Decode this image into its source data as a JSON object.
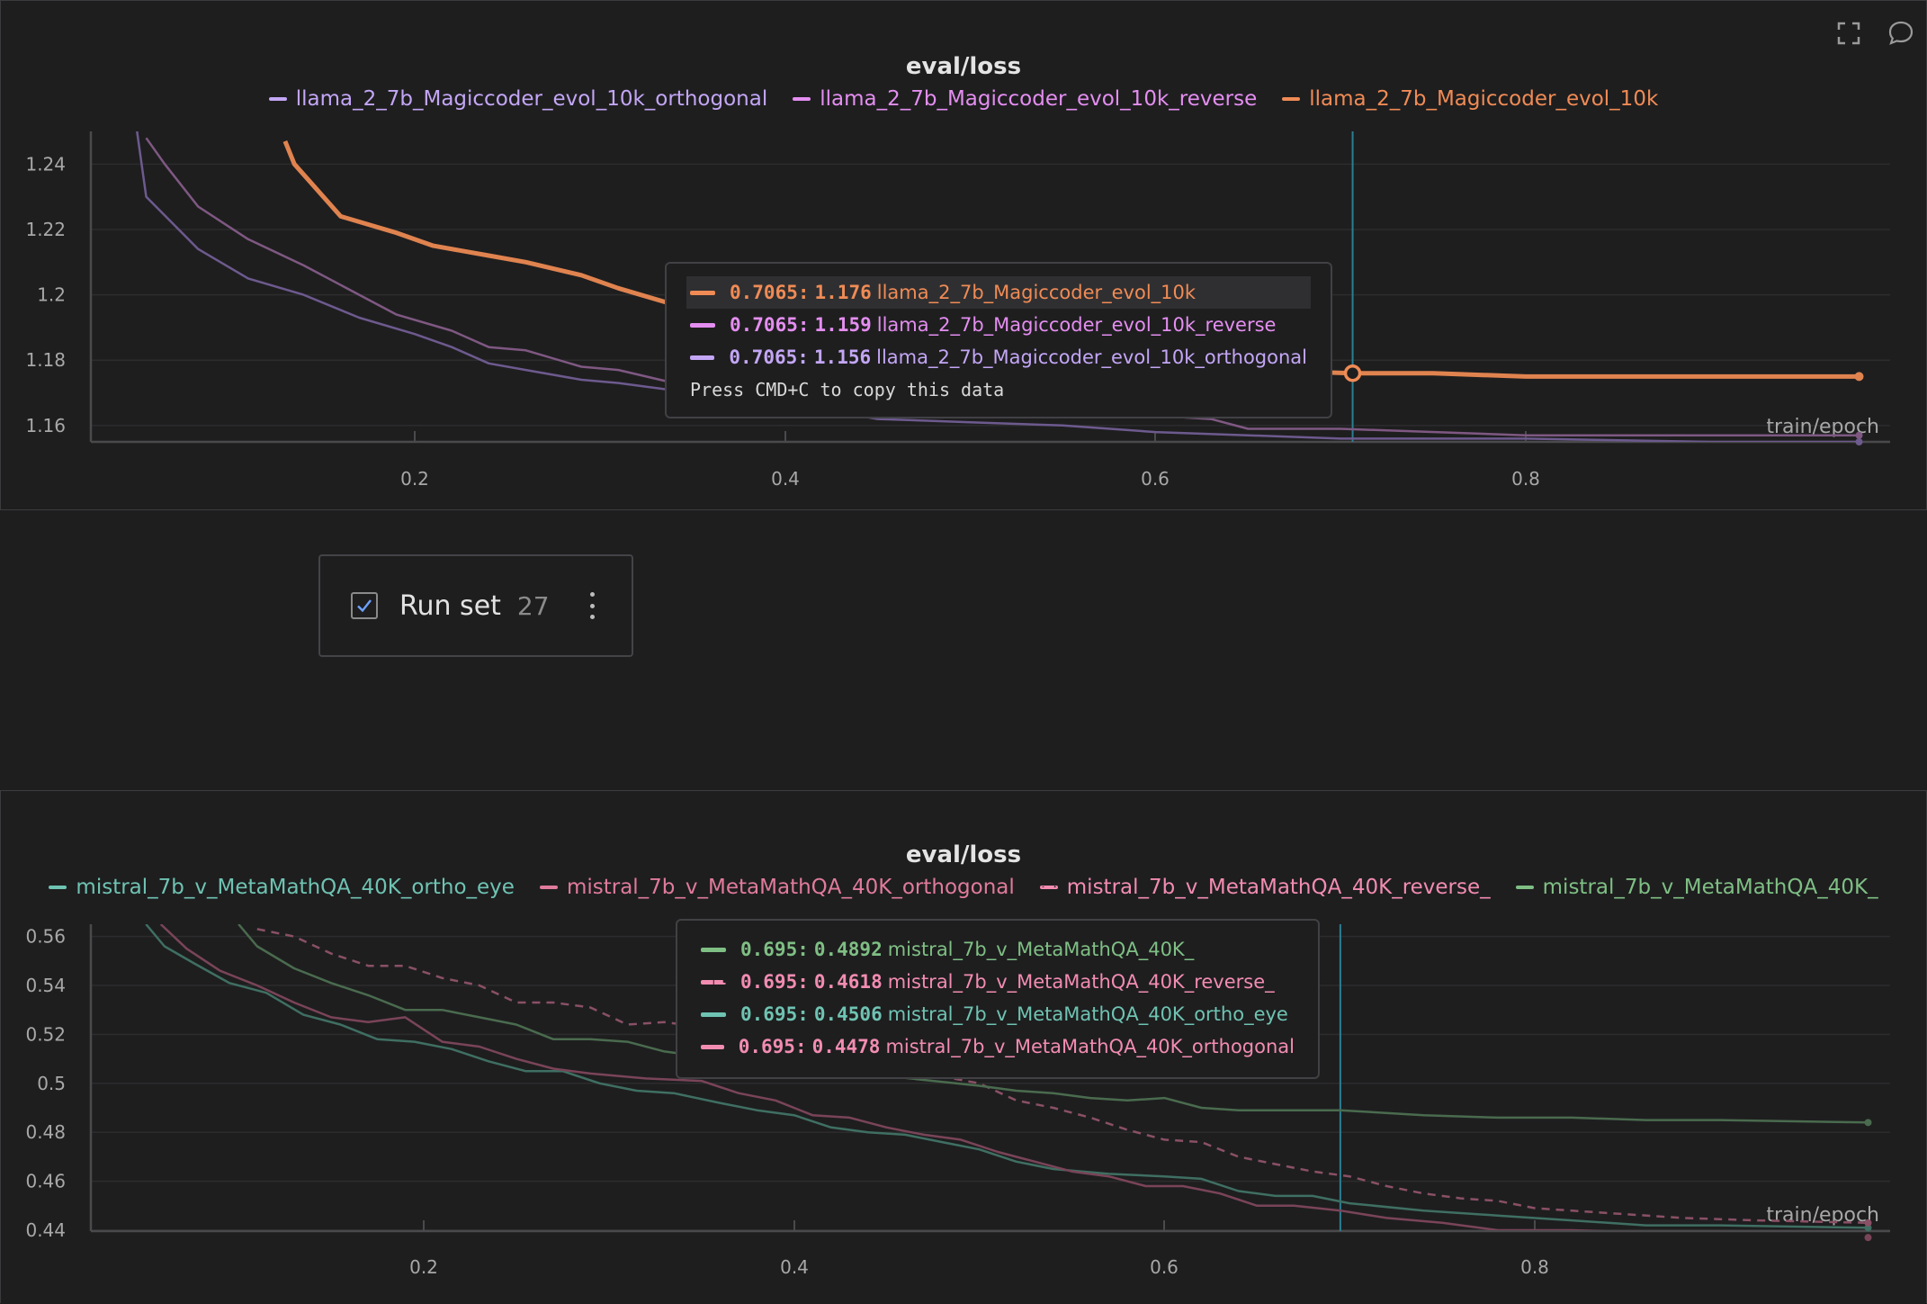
{
  "icons": {
    "fullscreen": "fullscreen-icon",
    "comment": "comment-icon",
    "checkbox": "checkbox-checked-icon",
    "menu": "kebab-menu-icon"
  },
  "run_set": {
    "label": "Run set",
    "count": "27"
  },
  "tooltip_hint": "Press CMD+C to copy this data",
  "chart_data": [
    {
      "type": "line",
      "title": "eval/loss",
      "xlabel": "train/epoch",
      "ylabel": "",
      "xlim": [
        0.03,
        0.99
      ],
      "ylim": [
        1.155,
        1.25
      ],
      "xticks": [
        "0.2",
        "0.4",
        "0.6",
        "0.8"
      ],
      "yticks": [
        "1.16",
        "1.18",
        "1.2",
        "1.22",
        "1.24"
      ],
      "grid": true,
      "legend_position": "top-center",
      "cursor_x": 0.7065,
      "series": [
        {
          "name": "llama_2_7b_Magiccoder_evol_10k_orthogonal",
          "color": "#c3a6f5",
          "line_color": "#6d5a8e",
          "dashed": false,
          "points": [
            [
              0.05,
              1.25
            ],
            [
              0.055,
              1.23
            ],
            [
              0.083,
              1.214
            ],
            [
              0.11,
              1.205
            ],
            [
              0.14,
              1.2
            ],
            [
              0.17,
              1.193
            ],
            [
              0.2,
              1.188
            ],
            [
              0.22,
              1.184
            ],
            [
              0.24,
              1.179
            ],
            [
              0.26,
              1.177
            ],
            [
              0.29,
              1.174
            ],
            [
              0.31,
              1.173
            ],
            [
              0.35,
              1.17
            ],
            [
              0.4,
              1.167
            ],
            [
              0.45,
              1.162
            ],
            [
              0.5,
              1.161
            ],
            [
              0.55,
              1.16
            ],
            [
              0.6,
              1.158
            ],
            [
              0.65,
              1.157
            ],
            [
              0.7,
              1.156
            ],
            [
              0.8,
              1.156
            ],
            [
              0.9,
              1.155
            ],
            [
              0.98,
              1.155
            ]
          ]
        },
        {
          "name": "llama_2_7b_Magiccoder_evol_10k_reverse",
          "color": "#e48ef0",
          "line_color": "#7f5882",
          "dashed": false,
          "points": [
            [
              0.055,
              1.248
            ],
            [
              0.065,
              1.24
            ],
            [
              0.083,
              1.227
            ],
            [
              0.11,
              1.217
            ],
            [
              0.14,
              1.209
            ],
            [
              0.16,
              1.203
            ],
            [
              0.19,
              1.194
            ],
            [
              0.22,
              1.189
            ],
            [
              0.24,
              1.184
            ],
            [
              0.26,
              1.183
            ],
            [
              0.29,
              1.178
            ],
            [
              0.31,
              1.177
            ],
            [
              0.34,
              1.173
            ],
            [
              0.4,
              1.169
            ],
            [
              0.45,
              1.166
            ],
            [
              0.5,
              1.165
            ],
            [
              0.55,
              1.164
            ],
            [
              0.6,
              1.163
            ],
            [
              0.63,
              1.162
            ],
            [
              0.65,
              1.159
            ],
            [
              0.7,
              1.159
            ],
            [
              0.8,
              1.157
            ],
            [
              0.9,
              1.157
            ],
            [
              0.98,
              1.157
            ]
          ]
        },
        {
          "name": "llama_2_7b_Magiccoder_evol_10k",
          "color": "#f08b55",
          "line_color": "#e0834f",
          "dashed": false,
          "points": [
            [
              0.13,
              1.247
            ],
            [
              0.135,
              1.24
            ],
            [
              0.16,
              1.224
            ],
            [
              0.19,
              1.219
            ],
            [
              0.21,
              1.215
            ],
            [
              0.24,
              1.212
            ],
            [
              0.26,
              1.21
            ],
            [
              0.29,
              1.206
            ],
            [
              0.31,
              1.202
            ],
            [
              0.34,
              1.197
            ],
            [
              0.4,
              1.19
            ],
            [
              0.45,
              1.185
            ],
            [
              0.5,
              1.181
            ],
            [
              0.55,
              1.179
            ],
            [
              0.6,
              1.178
            ],
            [
              0.65,
              1.177
            ],
            [
              0.7065,
              1.176
            ],
            [
              0.75,
              1.176
            ],
            [
              0.8,
              1.175
            ],
            [
              0.9,
              1.175
            ],
            [
              0.98,
              1.175
            ]
          ]
        }
      ],
      "tooltip_rows": [
        {
          "x": "0.7065:",
          "y": "1.176",
          "name": "llama_2_7b_Magiccoder_evol_10k",
          "color": "#f08b55",
          "dashed": false,
          "highlighted": true
        },
        {
          "x": "0.7065:",
          "y": "1.159",
          "name": "llama_2_7b_Magiccoder_evol_10k_reverse",
          "color": "#e48ef0",
          "dashed": false,
          "highlighted": false
        },
        {
          "x": "0.7065:",
          "y": "1.156",
          "name": "llama_2_7b_Magiccoder_evol_10k_orthogonal",
          "color": "#c3a6f5",
          "dashed": false,
          "highlighted": false
        }
      ]
    },
    {
      "type": "line",
      "title": "eval/loss",
      "xlabel": "train/epoch",
      "ylabel": "",
      "xlim": [
        0.03,
        0.99
      ],
      "ylim": [
        0.44,
        0.565
      ],
      "xticks": [
        "0.2",
        "0.4",
        "0.6",
        "0.8"
      ],
      "yticks": [
        "0.44",
        "0.46",
        "0.48",
        "0.5",
        "0.52",
        "0.54",
        "0.56"
      ],
      "grid": true,
      "legend_position": "top-center",
      "cursor_x": 0.695,
      "series": [
        {
          "name": "mistral_7b_v_MetaMathQA_40K_ortho_eye",
          "color": "#6fc3b2",
          "line_color": "#3f6f62",
          "dashed": false,
          "points": [
            [
              0.05,
              0.565
            ],
            [
              0.06,
              0.556
            ],
            [
              0.076,
              0.549
            ],
            [
              0.095,
              0.541
            ],
            [
              0.115,
              0.537
            ],
            [
              0.135,
              0.528
            ],
            [
              0.155,
              0.524
            ],
            [
              0.175,
              0.518
            ],
            [
              0.195,
              0.517
            ],
            [
              0.215,
              0.514
            ],
            [
              0.235,
              0.509
            ],
            [
              0.255,
              0.505
            ],
            [
              0.275,
              0.505
            ],
            [
              0.295,
              0.5
            ],
            [
              0.315,
              0.497
            ],
            [
              0.335,
              0.496
            ],
            [
              0.36,
              0.492
            ],
            [
              0.38,
              0.489
            ],
            [
              0.4,
              0.487
            ],
            [
              0.42,
              0.482
            ],
            [
              0.44,
              0.48
            ],
            [
              0.46,
              0.479
            ],
            [
              0.48,
              0.476
            ],
            [
              0.5,
              0.473
            ],
            [
              0.52,
              0.468
            ],
            [
              0.54,
              0.465
            ],
            [
              0.57,
              0.463
            ],
            [
              0.6,
              0.462
            ],
            [
              0.62,
              0.461
            ],
            [
              0.64,
              0.456
            ],
            [
              0.66,
              0.454
            ],
            [
              0.68,
              0.454
            ],
            [
              0.7,
              0.451
            ],
            [
              0.74,
              0.448
            ],
            [
              0.78,
              0.446
            ],
            [
              0.82,
              0.444
            ],
            [
              0.86,
              0.442
            ],
            [
              0.9,
              0.442
            ],
            [
              0.98,
              0.441
            ]
          ]
        },
        {
          "name": "mistral_7b_v_MetaMathQA_40K_orthogonal",
          "color": "#e07b9b",
          "line_color": "#7a4458",
          "dashed": false,
          "points": [
            [
              0.058,
              0.565
            ],
            [
              0.072,
              0.555
            ],
            [
              0.09,
              0.546
            ],
            [
              0.11,
              0.54
            ],
            [
              0.13,
              0.533
            ],
            [
              0.15,
              0.527
            ],
            [
              0.17,
              0.525
            ],
            [
              0.19,
              0.527
            ],
            [
              0.21,
              0.517
            ],
            [
              0.23,
              0.515
            ],
            [
              0.25,
              0.51
            ],
            [
              0.27,
              0.506
            ],
            [
              0.29,
              0.504
            ],
            [
              0.32,
              0.502
            ],
            [
              0.35,
              0.501
            ],
            [
              0.37,
              0.496
            ],
            [
              0.39,
              0.493
            ],
            [
              0.41,
              0.487
            ],
            [
              0.43,
              0.486
            ],
            [
              0.45,
              0.482
            ],
            [
              0.47,
              0.479
            ],
            [
              0.49,
              0.477
            ],
            [
              0.51,
              0.472
            ],
            [
              0.53,
              0.468
            ],
            [
              0.55,
              0.464
            ],
            [
              0.57,
              0.462
            ],
            [
              0.59,
              0.458
            ],
            [
              0.61,
              0.458
            ],
            [
              0.63,
              0.455
            ],
            [
              0.65,
              0.45
            ],
            [
              0.67,
              0.45
            ],
            [
              0.695,
              0.448
            ],
            [
              0.72,
              0.445
            ],
            [
              0.75,
              0.443
            ],
            [
              0.78,
              0.44
            ],
            [
              0.82,
              0.44
            ],
            [
              0.86,
              0.439
            ],
            [
              0.9,
              0.439
            ],
            [
              0.98,
              0.437
            ]
          ]
        },
        {
          "name": "mistral_7b_v_MetaMathQA_40K_reverse_",
          "color": "#f28cb1",
          "line_color": "#8a5065",
          "dashed": true,
          "points": [
            [
              0.11,
              0.563
            ],
            [
              0.13,
              0.56
            ],
            [
              0.15,
              0.553
            ],
            [
              0.17,
              0.548
            ],
            [
              0.19,
              0.548
            ],
            [
              0.21,
              0.543
            ],
            [
              0.23,
              0.54
            ],
            [
              0.25,
              0.533
            ],
            [
              0.27,
              0.533
            ],
            [
              0.29,
              0.531
            ],
            [
              0.31,
              0.524
            ],
            [
              0.33,
              0.525
            ],
            [
              0.35,
              0.523
            ],
            [
              0.4,
              0.515
            ],
            [
              0.45,
              0.507
            ],
            [
              0.5,
              0.5
            ],
            [
              0.52,
              0.493
            ],
            [
              0.54,
              0.49
            ],
            [
              0.56,
              0.486
            ],
            [
              0.58,
              0.481
            ],
            [
              0.6,
              0.477
            ],
            [
              0.62,
              0.476
            ],
            [
              0.64,
              0.47
            ],
            [
              0.66,
              0.467
            ],
            [
              0.68,
              0.464
            ],
            [
              0.7,
              0.462
            ],
            [
              0.72,
              0.458
            ],
            [
              0.74,
              0.455
            ],
            [
              0.76,
              0.453
            ],
            [
              0.78,
              0.452
            ],
            [
              0.8,
              0.449
            ],
            [
              0.84,
              0.447
            ],
            [
              0.88,
              0.445
            ],
            [
              0.92,
              0.444
            ],
            [
              0.98,
              0.443
            ]
          ]
        },
        {
          "name": "mistral_7b_v_MetaMathQA_40K_",
          "color": "#7fbf84",
          "line_color": "#4a6b4e",
          "dashed": false,
          "points": [
            [
              0.1,
              0.565
            ],
            [
              0.11,
              0.556
            ],
            [
              0.13,
              0.547
            ],
            [
              0.15,
              0.541
            ],
            [
              0.17,
              0.536
            ],
            [
              0.19,
              0.53
            ],
            [
              0.21,
              0.53
            ],
            [
              0.23,
              0.527
            ],
            [
              0.25,
              0.524
            ],
            [
              0.27,
              0.518
            ],
            [
              0.29,
              0.518
            ],
            [
              0.31,
              0.517
            ],
            [
              0.33,
              0.513
            ],
            [
              0.35,
              0.511
            ],
            [
              0.4,
              0.507
            ],
            [
              0.45,
              0.503
            ],
            [
              0.5,
              0.499
            ],
            [
              0.52,
              0.497
            ],
            [
              0.54,
              0.496
            ],
            [
              0.56,
              0.494
            ],
            [
              0.58,
              0.493
            ],
            [
              0.6,
              0.494
            ],
            [
              0.62,
              0.49
            ],
            [
              0.64,
              0.489
            ],
            [
              0.66,
              0.489
            ],
            [
              0.695,
              0.489
            ],
            [
              0.74,
              0.487
            ],
            [
              0.78,
              0.486
            ],
            [
              0.82,
              0.486
            ],
            [
              0.86,
              0.485
            ],
            [
              0.9,
              0.485
            ],
            [
              0.98,
              0.484
            ]
          ]
        }
      ],
      "tooltip_rows": [
        {
          "x": "0.695:",
          "y": "0.4892",
          "name": "mistral_7b_v_MetaMathQA_40K_",
          "color": "#7fbf84",
          "dashed": false,
          "highlighted": false
        },
        {
          "x": "0.695:",
          "y": "0.4618",
          "name": "mistral_7b_v_MetaMathQA_40K_reverse_",
          "color": "#f28cb1",
          "dashed": true,
          "highlighted": false
        },
        {
          "x": "0.695:",
          "y": "0.4506",
          "name": "mistral_7b_v_MetaMathQA_40K_ortho_eye",
          "color": "#6fc3b2",
          "dashed": false,
          "highlighted": false
        },
        {
          "x": "0.695:",
          "y": "0.4478",
          "name": "mistral_7b_v_MetaMathQA_40K_orthogonal",
          "color": "#f28cb1",
          "dashed": false,
          "highlighted": false
        }
      ]
    }
  ]
}
